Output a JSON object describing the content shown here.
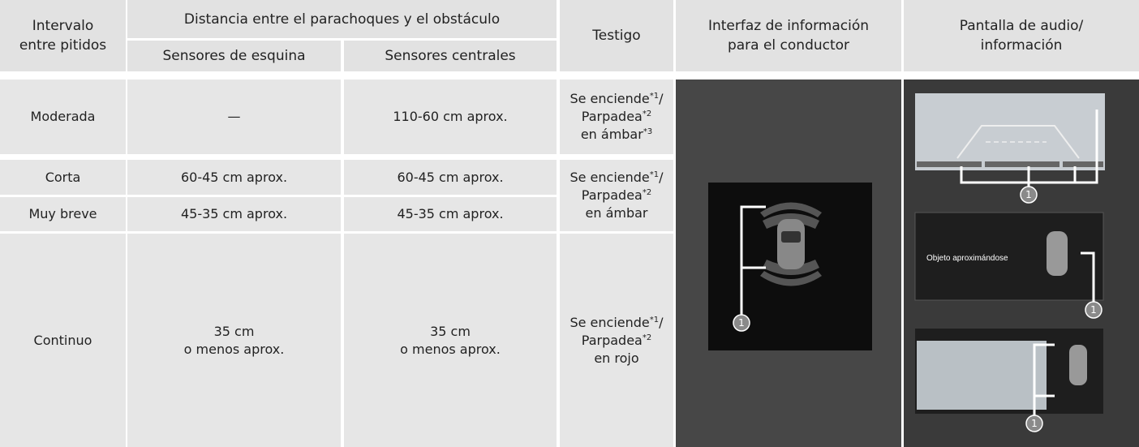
{
  "header": {
    "interval": [
      "Intervalo",
      "entre pitidos"
    ],
    "distance": "Distancia entre el parachoques y el obstáculo",
    "corner": "Sensores de esquina",
    "central": "Sensores centrales",
    "testigo": "Testigo",
    "driver": [
      "Interfaz de información",
      "para el conductor"
    ],
    "audio": [
      "Pantalla de audio/",
      "información"
    ]
  },
  "rows": [
    {
      "interval": "Moderada",
      "corner": [
        "—"
      ],
      "central": [
        "110-60 cm aprox."
      ]
    },
    {
      "interval": "Corta",
      "corner": [
        "60-45 cm aprox."
      ],
      "central": [
        "60-45 cm aprox."
      ]
    },
    {
      "interval": "Muy breve",
      "corner": [
        "45-35 cm aprox."
      ],
      "central": [
        "45-35 cm aprox."
      ]
    },
    {
      "interval": "Continuo",
      "corner": [
        "35 cm",
        "o menos aprox."
      ],
      "central": [
        "35 cm",
        "o menos aprox."
      ]
    }
  ],
  "testigo": [
    [
      [
        {
          "text": "Se enciende"
        },
        {
          "text": "*1",
          "sup": true
        },
        {
          "text": "/"
        }
      ],
      [
        {
          "text": "Parpadea"
        },
        {
          "text": "*2",
          "sup": true
        }
      ],
      [
        {
          "text": "en ámbar"
        },
        {
          "text": "*3",
          "sup": true
        }
      ]
    ],
    [
      [
        {
          "text": "Se enciende"
        },
        {
          "text": "*1",
          "sup": true
        },
        {
          "text": "/"
        }
      ],
      [
        {
          "text": "Parpadea"
        },
        {
          "text": "*2",
          "sup": true
        }
      ],
      [
        {
          "text": "en ámbar"
        }
      ]
    ],
    [
      [
        {
          "text": "Se enciende"
        },
        {
          "text": "*1",
          "sup": true
        },
        {
          "text": "/"
        }
      ],
      [
        {
          "text": "Parpadea"
        },
        {
          "text": "*2",
          "sup": true
        }
      ],
      [
        {
          "text": "en rojo"
        }
      ]
    ]
  ],
  "images": {
    "callout": "1",
    "overlay": "Objeto aproximándose"
  }
}
